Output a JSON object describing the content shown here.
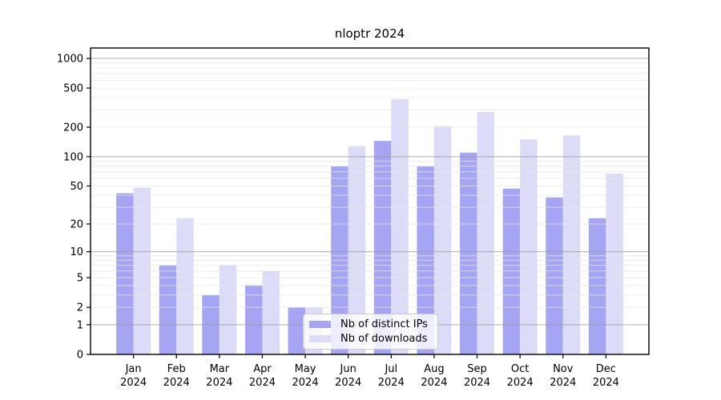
{
  "chart_data": {
    "type": "bar",
    "title": "nloptr 2024",
    "categories": [
      "Jan",
      "Feb",
      "Mar",
      "Apr",
      "May",
      "Jun",
      "Jul",
      "Aug",
      "Sep",
      "Oct",
      "Nov",
      "Dec"
    ],
    "x_sub_label": "2024",
    "series": [
      {
        "name": "Nb of distinct IPs",
        "color": "#a5a5f3",
        "values": [
          42,
          7,
          3,
          4,
          2,
          80,
          145,
          80,
          110,
          47,
          38,
          23
        ]
      },
      {
        "name": "Nb of downloads",
        "color": "#dcdcf9",
        "values": [
          48,
          23,
          7,
          6,
          2,
          128,
          385,
          205,
          285,
          150,
          165,
          67
        ]
      }
    ],
    "y_ticks": [
      0,
      1,
      2,
      5,
      10,
      20,
      50,
      100,
      200,
      500,
      1000
    ],
    "y_scale": "log10(1+x)",
    "ylim": [
      0,
      1270
    ],
    "grid": "horizontal, minor lines at 1-9 of each decade, darker at 1/10/100/1000",
    "legend_position": "inside lower-left-center",
    "colors": {
      "grid_major": "#9a9a9a",
      "grid_minor": "#e6e6e6",
      "axis": "#000000",
      "background": "#ffffff"
    }
  }
}
